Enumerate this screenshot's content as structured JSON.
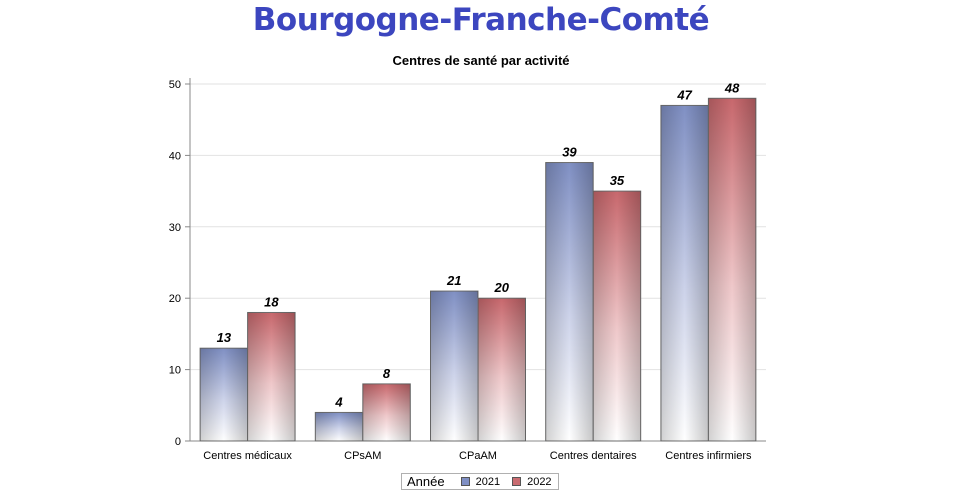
{
  "header": {
    "title": "Bourgogne-Franche-Comté"
  },
  "chart_data": {
    "type": "bar",
    "title": "Centres de santé par activité",
    "categories": [
      "Centres médicaux",
      "CPsAM",
      "CPaAM",
      "Centres dentaires",
      "Centres infirmiers"
    ],
    "series": [
      {
        "name": "2021",
        "values": [
          13,
          4,
          21,
          39,
          47
        ],
        "color": "#7f8fc4"
      },
      {
        "name": "2022",
        "values": [
          18,
          8,
          20,
          35,
          48
        ],
        "color": "#c96b70"
      }
    ],
    "ylim": [
      0,
      50
    ],
    "yticks": [
      0,
      10,
      20,
      30,
      40,
      50
    ],
    "grid": true,
    "data_labels": true,
    "legend": {
      "title": "Année",
      "placement": "bottom-center"
    }
  }
}
